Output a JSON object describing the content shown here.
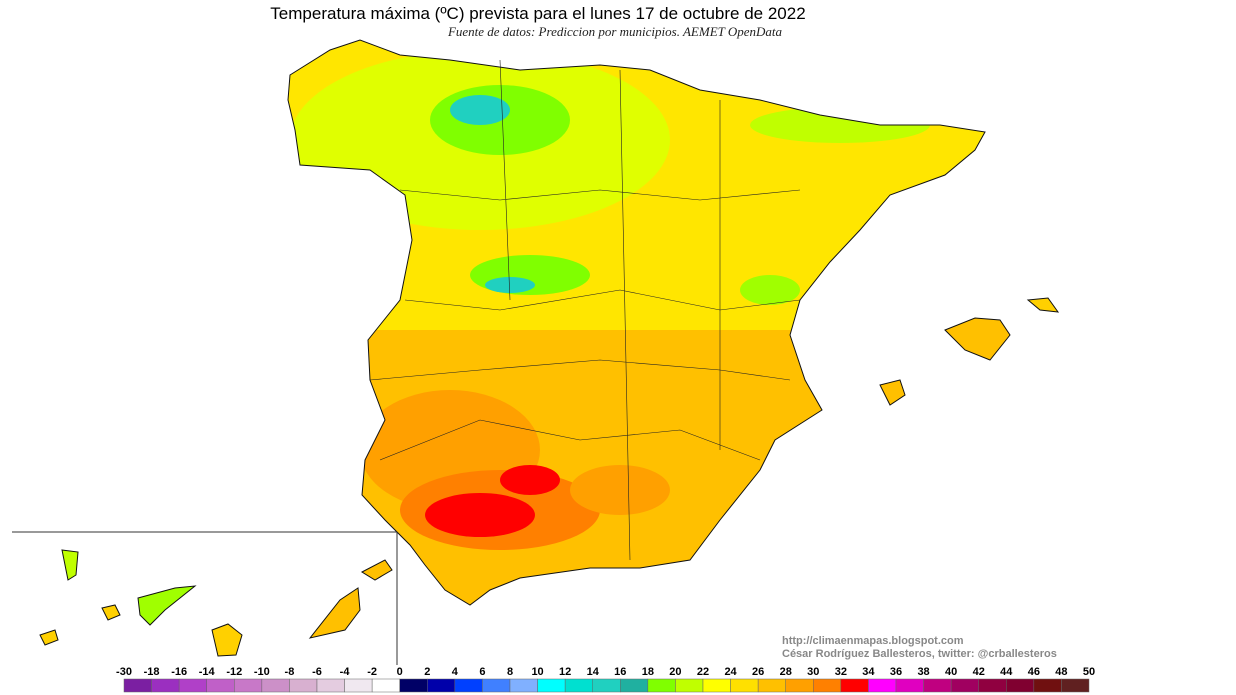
{
  "header": {
    "title": "Temperatura máxima (ºC) prevista para el lunes 17 de octubre de 2022",
    "subtitle": "Fuente de datos: Prediccion por municipios. AEMET OpenData"
  },
  "credits": [
    "http://climaenmapas.blogspot.com",
    "César Rodríguez Ballesteros, twitter: @crballesteros"
  ],
  "legend": {
    "ticks": [
      -30,
      -18,
      -16,
      -14,
      -12,
      -10,
      -8,
      -6,
      -4,
      -2,
      0,
      2,
      4,
      6,
      8,
      10,
      12,
      14,
      16,
      18,
      20,
      22,
      24,
      26,
      28,
      30,
      32,
      34,
      36,
      38,
      40,
      42,
      44,
      46,
      48,
      50
    ],
    "colors": [
      "#7b1fa2",
      "#9b2fc0",
      "#b040c8",
      "#c060c8",
      "#c878c8",
      "#cc90c8",
      "#d8b0d0",
      "#e4cce0",
      "#f0e8f0",
      "#ffffff",
      "#000066",
      "#0000aa",
      "#0040ff",
      "#4080ff",
      "#80b0ff",
      "#00ffff",
      "#00e0d0",
      "#20d0c0",
      "#20b0a0",
      "#80ff00",
      "#c0ff00",
      "#ffff00",
      "#ffe000",
      "#ffc000",
      "#ffa000",
      "#ff8000",
      "#ff0000",
      "#ff00ff",
      "#e000c0",
      "#c00080",
      "#a00060",
      "#900040",
      "#800030",
      "#701010",
      "#602020"
    ]
  }
}
